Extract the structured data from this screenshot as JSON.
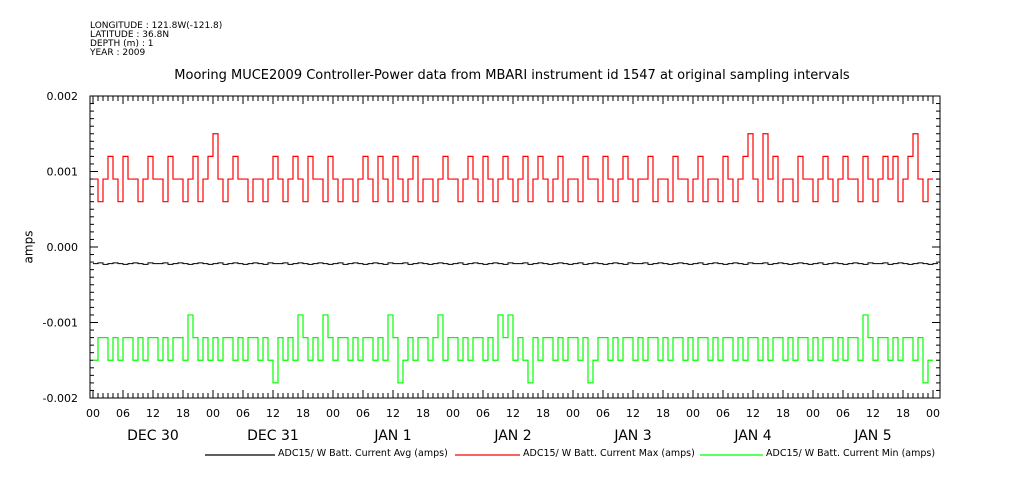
{
  "header": {
    "longitude": "LONGITUDE : 121.8W(-121.8)",
    "latitude": "LATITUDE : 36.8N",
    "depth": "DEPTH (m) : 1",
    "year": "YEAR : 2009"
  },
  "chart_data": {
    "type": "line",
    "title": "Mooring MUCE2009 Controller-Power data from MBARI instrument id 1547 at original sampling intervals",
    "xlabel": "",
    "ylabel": "amps",
    "ylim": [
      -0.002,
      0.002
    ],
    "yticks": [
      0.002,
      0.001,
      0.0,
      -0.001,
      -0.002
    ],
    "ytick_labels": [
      "0.002",
      "0.001",
      "0.000",
      "-0.001",
      "-0.002"
    ],
    "x_unit": "hours since DEC 30 00:00",
    "xlim": [
      0,
      168
    ],
    "xtick_labels": [
      "00",
      "06",
      "12",
      "18",
      "00",
      "06",
      "12",
      "18",
      "00",
      "06",
      "12",
      "18",
      "00",
      "06",
      "12",
      "18",
      "00",
      "06",
      "12",
      "18",
      "00",
      "06",
      "12",
      "18",
      "00",
      "06",
      "12",
      "18",
      "00"
    ],
    "date_labels": [
      "DEC 30",
      "DEC 31",
      "JAN  1",
      "JAN  2",
      "JAN  3",
      "JAN  4",
      "JAN  5"
    ],
    "grid": false,
    "legend_placement": "bottom",
    "series": [
      {
        "name": "ADC15/ W Batt. Current Avg (amps)",
        "color": "#000000",
        "values": [
          -0.00022,
          -0.00021,
          -0.00023,
          -0.00022,
          -0.00021,
          -0.00022,
          -0.00023,
          -0.00022,
          -0.00021,
          -0.00022,
          -0.00023,
          -0.00021,
          -0.00022,
          -0.00022,
          -0.00021,
          -0.00023,
          -0.00022,
          -0.00021,
          -0.00022,
          -0.00023,
          -0.00022,
          -0.00021,
          -0.00022,
          -0.00023,
          -0.00022,
          -0.00021,
          -0.00023,
          -0.00022,
          -0.00021,
          -0.00022,
          -0.00023,
          -0.00022,
          -0.00021,
          -0.00022,
          -0.00023,
          -0.00021,
          -0.00022,
          -0.00022,
          -0.00021,
          -0.00023,
          -0.00022,
          -0.00021,
          -0.00022,
          -0.00023,
          -0.00022,
          -0.00021,
          -0.00022,
          -0.00023,
          -0.00022,
          -0.00021,
          -0.00023,
          -0.00022,
          -0.00021,
          -0.00022,
          -0.00023,
          -0.00022,
          -0.00021,
          -0.00022,
          -0.00023,
          -0.00021,
          -0.00022,
          -0.00022,
          -0.00021,
          -0.00023,
          -0.00022,
          -0.00021,
          -0.00022,
          -0.00023,
          -0.00022,
          -0.00021,
          -0.00022,
          -0.00023,
          -0.00022,
          -0.00021,
          -0.00023,
          -0.00022,
          -0.00021,
          -0.00022,
          -0.00023,
          -0.00022,
          -0.00021,
          -0.00022,
          -0.00023,
          -0.00021,
          -0.00022,
          -0.00022,
          -0.00021,
          -0.00023,
          -0.00022,
          -0.00021,
          -0.00022,
          -0.00023,
          -0.00022,
          -0.00021,
          -0.00022,
          -0.00023,
          -0.00022,
          -0.00021,
          -0.00023,
          -0.00022,
          -0.00021,
          -0.00022,
          -0.00023,
          -0.00022,
          -0.00021,
          -0.00022,
          -0.00023,
          -0.00021,
          -0.00022,
          -0.00022,
          -0.00021,
          -0.00023,
          -0.00022,
          -0.00021,
          -0.00022,
          -0.00023,
          -0.00022,
          -0.00021,
          -0.00022,
          -0.00023,
          -0.00022,
          -0.00021,
          -0.00023,
          -0.00022,
          -0.00021,
          -0.00022,
          -0.00023,
          -0.00022,
          -0.00021,
          -0.00022,
          -0.00023,
          -0.00021,
          -0.00022,
          -0.00022,
          -0.00021,
          -0.00023,
          -0.00022,
          -0.00021,
          -0.00022,
          -0.00023,
          -0.00022,
          -0.00021,
          -0.00022,
          -0.00023,
          -0.00022,
          -0.00021,
          -0.00023,
          -0.00022,
          -0.00021,
          -0.00022,
          -0.00023,
          -0.00022,
          -0.00021,
          -0.00022,
          -0.00023,
          -0.00021,
          -0.00022,
          -0.00022,
          -0.00021,
          -0.00023,
          -0.00022,
          -0.00021,
          -0.00022,
          -0.00023,
          -0.00022,
          -0.00021,
          -0.00022,
          -0.00023,
          -0.00022
        ]
      },
      {
        "name": "ADC15/ W Batt. Current Max (amps)",
        "color": "#ff0000",
        "values": [
          0.0009,
          0.0006,
          0.0009,
          0.0012,
          0.0009,
          0.0006,
          0.0012,
          0.0009,
          0.0009,
          0.0006,
          0.0009,
          0.0012,
          0.0009,
          0.0009,
          0.0006,
          0.0012,
          0.0009,
          0.0009,
          0.0006,
          0.0009,
          0.0012,
          0.0006,
          0.0009,
          0.0012,
          0.0015,
          0.0009,
          0.0006,
          0.0009,
          0.0012,
          0.0009,
          0.0009,
          0.0006,
          0.0009,
          0.0009,
          0.0006,
          0.0009,
          0.0012,
          0.0009,
          0.0006,
          0.0009,
          0.0012,
          0.0009,
          0.0006,
          0.0012,
          0.0009,
          0.0009,
          0.0006,
          0.0012,
          0.0009,
          0.0006,
          0.0009,
          0.0009,
          0.0006,
          0.0009,
          0.0012,
          0.0009,
          0.0006,
          0.0012,
          0.0009,
          0.0006,
          0.0012,
          0.0009,
          0.0006,
          0.0009,
          0.0012,
          0.0006,
          0.0009,
          0.0009,
          0.0006,
          0.0009,
          0.0012,
          0.0009,
          0.0009,
          0.0006,
          0.0009,
          0.0012,
          0.0009,
          0.0006,
          0.0012,
          0.0009,
          0.0006,
          0.0009,
          0.0012,
          0.0009,
          0.0006,
          0.0009,
          0.0012,
          0.0006,
          0.0009,
          0.0012,
          0.0009,
          0.0006,
          0.0009,
          0.0012,
          0.0006,
          0.0009,
          0.0009,
          0.0006,
          0.0012,
          0.0009,
          0.0009,
          0.0006,
          0.0012,
          0.0009,
          0.0006,
          0.0009,
          0.0012,
          0.0009,
          0.0006,
          0.0009,
          0.0009,
          0.0012,
          0.0006,
          0.0009,
          0.0009,
          0.0006,
          0.0012,
          0.0009,
          0.0009,
          0.0006,
          0.0009,
          0.0012,
          0.0006,
          0.0009,
          0.0009,
          0.0006,
          0.0012,
          0.0009,
          0.0006,
          0.0009,
          0.0012,
          0.0015,
          0.0009,
          0.0006,
          0.0015,
          0.0009,
          0.0012,
          0.0006,
          0.0009,
          0.0009,
          0.0006,
          0.0012,
          0.0009,
          0.0009,
          0.0006,
          0.0009,
          0.0012,
          0.0009,
          0.0006,
          0.0009,
          0.0012,
          0.0009,
          0.0009,
          0.0006,
          0.0012,
          0.0009,
          0.0006,
          0.0009,
          0.0012,
          0.0009,
          0.0012,
          0.0006,
          0.0009,
          0.0012,
          0.0015,
          0.0009,
          0.0006,
          0.0009
        ]
      },
      {
        "name": "ADC15/ W Batt. Current Min (amps)",
        "color": "#00ff00",
        "values": [
          -0.0015,
          -0.0012,
          -0.0012,
          -0.0015,
          -0.0012,
          -0.0015,
          -0.0012,
          -0.0012,
          -0.0015,
          -0.0012,
          -0.0015,
          -0.0012,
          -0.0012,
          -0.0015,
          -0.0012,
          -0.0015,
          -0.0012,
          -0.0012,
          -0.0015,
          -0.0009,
          -0.0012,
          -0.0015,
          -0.0012,
          -0.0015,
          -0.0012,
          -0.0015,
          -0.0012,
          -0.0012,
          -0.0015,
          -0.0012,
          -0.0015,
          -0.0012,
          -0.0012,
          -0.0015,
          -0.0012,
          -0.0015,
          -0.0018,
          -0.0012,
          -0.0015,
          -0.0012,
          -0.0015,
          -0.0009,
          -0.0012,
          -0.0015,
          -0.0012,
          -0.0015,
          -0.0009,
          -0.0012,
          -0.0015,
          -0.0012,
          -0.0012,
          -0.0015,
          -0.0012,
          -0.0015,
          -0.0012,
          -0.0012,
          -0.0015,
          -0.0012,
          -0.0015,
          -0.0009,
          -0.0012,
          -0.0018,
          -0.0015,
          -0.0012,
          -0.0015,
          -0.0012,
          -0.0012,
          -0.0015,
          -0.0012,
          -0.0009,
          -0.0015,
          -0.0012,
          -0.0012,
          -0.0015,
          -0.0012,
          -0.0015,
          -0.0012,
          -0.0012,
          -0.0015,
          -0.0012,
          -0.0015,
          -0.0009,
          -0.0012,
          -0.0009,
          -0.0015,
          -0.0012,
          -0.0015,
          -0.0018,
          -0.0012,
          -0.0015,
          -0.0012,
          -0.0012,
          -0.0015,
          -0.0012,
          -0.0015,
          -0.0012,
          -0.0012,
          -0.0015,
          -0.0012,
          -0.0018,
          -0.0015,
          -0.0012,
          -0.0012,
          -0.0015,
          -0.0012,
          -0.0015,
          -0.0012,
          -0.0012,
          -0.0015,
          -0.0012,
          -0.0015,
          -0.0012,
          -0.0012,
          -0.0015,
          -0.0012,
          -0.0015,
          -0.0012,
          -0.0012,
          -0.0015,
          -0.0012,
          -0.0015,
          -0.0012,
          -0.0012,
          -0.0015,
          -0.0012,
          -0.0015,
          -0.0012,
          -0.0012,
          -0.0015,
          -0.0012,
          -0.0015,
          -0.0012,
          -0.0012,
          -0.0015,
          -0.0012,
          -0.0015,
          -0.0012,
          -0.0012,
          -0.0015,
          -0.0012,
          -0.0015,
          -0.0012,
          -0.0012,
          -0.0015,
          -0.0012,
          -0.0015,
          -0.0012,
          -0.0012,
          -0.0015,
          -0.0012,
          -0.0015,
          -0.0012,
          -0.0012,
          -0.0015,
          -0.0009,
          -0.0012,
          -0.0015,
          -0.0012,
          -0.0012,
          -0.0015,
          -0.0012,
          -0.0015,
          -0.0012,
          -0.0012,
          -0.0015,
          -0.0012,
          -0.0018,
          -0.0015
        ]
      }
    ]
  }
}
